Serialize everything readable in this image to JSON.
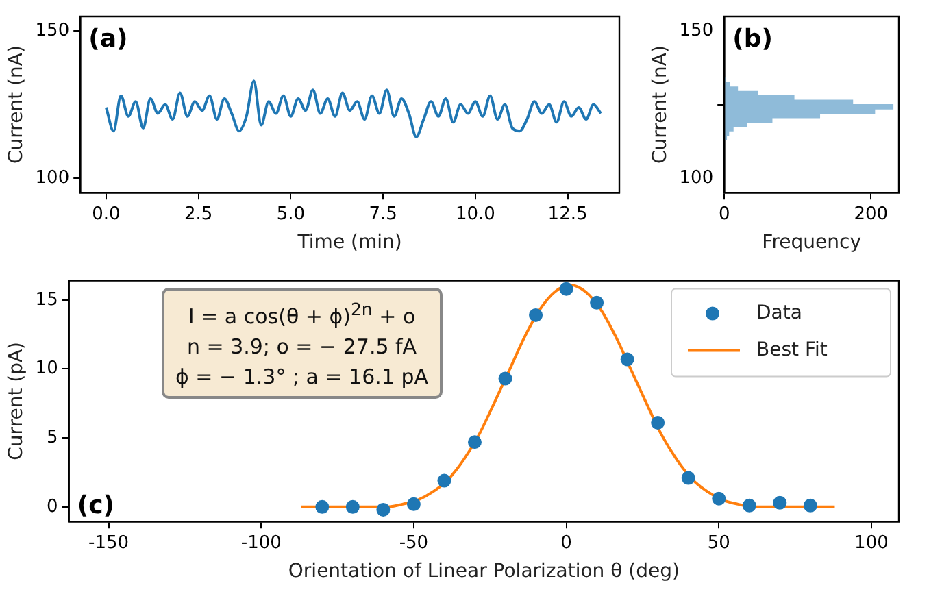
{
  "chart_data": [
    {
      "type": "line",
      "xlabel": "Time (min)",
      "ylabel": "Current (nA)",
      "annotations": [
        "(a)"
      ],
      "x": [
        0,
        0.2,
        0.4,
        0.6,
        0.8,
        1.0,
        1.2,
        1.4,
        1.6,
        1.8,
        2.0,
        2.2,
        2.4,
        2.6,
        2.8,
        3.0,
        3.2,
        3.4,
        3.6,
        3.8,
        4.0,
        4.2,
        4.4,
        4.6,
        4.8,
        5.0,
        5.2,
        5.4,
        5.6,
        5.8,
        6.0,
        6.2,
        6.4,
        6.6,
        6.8,
        7.0,
        7.2,
        7.4,
        7.6,
        7.8,
        8.0,
        8.2,
        8.4,
        8.6,
        8.8,
        9.0,
        9.2,
        9.4,
        9.6,
        9.8,
        10.0,
        10.2,
        10.4,
        10.6,
        10.8,
        11.0,
        11.2,
        11.4,
        11.6,
        11.8,
        12.0,
        12.2,
        12.4,
        12.6,
        12.8,
        13.0,
        13.2,
        13.4
      ],
      "series": [
        {
          "color": "#1f77b4",
          "values": [
            124,
            116,
            128,
            121,
            126,
            117,
            127,
            122,
            125,
            120,
            129,
            121,
            126,
            123,
            128,
            120,
            127,
            122,
            116,
            121,
            133,
            118,
            126,
            122,
            128,
            121,
            127,
            123,
            130,
            122,
            127,
            121,
            129,
            123,
            126,
            120,
            128,
            122,
            130,
            121,
            127,
            122,
            114,
            120,
            126,
            121,
            127,
            119,
            125,
            122,
            126,
            121,
            128,
            120,
            125,
            117,
            116,
            120,
            126,
            122,
            125,
            119,
            126,
            121,
            124,
            120,
            125,
            122
          ]
        }
      ],
      "marker": "none",
      "grid": false,
      "xlim": [
        -0.7,
        13.9
      ],
      "xticks": [
        {
          "value": 0,
          "label": "0.0"
        },
        2.5,
        {
          "value": 5,
          "label": "5.0"
        },
        7.5,
        {
          "value": 10,
          "label": "10.0"
        },
        12.5
      ],
      "ylim": [
        95,
        155
      ],
      "yticks": [
        100,
        150
      ]
    },
    {
      "type": "histogram",
      "orientation": "horizontal",
      "xlabel": "Frequency",
      "ylabel": "Current (nA)",
      "annotations": [
        "(b)"
      ],
      "bins": [
        113,
        114.5,
        116,
        117.5,
        119,
        120.5,
        122,
        123.5,
        125,
        126.5,
        128,
        129.5,
        131,
        132.5,
        134
      ],
      "values": [
        3,
        6,
        12,
        30,
        65,
        130,
        205,
        230,
        175,
        95,
        45,
        18,
        7,
        2
      ],
      "color": "#8fbbd9",
      "grid": false,
      "xlim": [
        0,
        238
      ],
      "xticks": [
        0,
        200
      ],
      "ylim": [
        95,
        155
      ],
      "yticks": [
        100,
        150
      ]
    },
    {
      "type": "scatter",
      "xlabel": "Orientation of Linear Polarization θ (deg)",
      "ylabel": "Current (pA)",
      "annotations": [
        "(c)",
        "I = a  cos(θ + ϕ)$^{2n}$ + o",
        "n = 3.9; o = − 27.5 fA",
        "ϕ = − 1.3° ; a = 16.1 pA"
      ],
      "legend": "top right",
      "grid": false,
      "series": [
        {
          "name": "Data",
          "type": "scatter",
          "marker": "circle",
          "color": "#1f77b4",
          "x": [
            -80,
            -70,
            -60,
            -50,
            -40,
            -30,
            -20,
            -10,
            0,
            10,
            20,
            30,
            40,
            50,
            60,
            70,
            80
          ],
          "values": [
            0,
            0,
            -0.2,
            0.2,
            1.9,
            4.7,
            9.3,
            13.9,
            15.8,
            14.8,
            10.7,
            6.1,
            2.1,
            0.6,
            0.1,
            0.3,
            0.1
          ]
        },
        {
          "name": "Best Fit",
          "type": "line",
          "marker": "none",
          "color": "#ff7f0e",
          "x": [
            -87,
            -63.7,
            -58.7,
            -53.7,
            -48.7,
            -43.7,
            -38.7,
            -33.7,
            -28.7,
            -23.7,
            -18.7,
            -13.7,
            -8.7,
            -3.7,
            1.3,
            6.3,
            11.3,
            16.3,
            21.3,
            26.3,
            31.3,
            36.3,
            41.3,
            46.3,
            51.3,
            56.3,
            61.3,
            66.3,
            88
          ],
          "values": [
            0,
            0,
            0,
            0.2,
            0.5,
            1.1,
            2.0,
            3.4,
            5.2,
            7.5,
            9.9,
            12.3,
            14.3,
            15.6,
            16.1,
            15.6,
            14.3,
            12.3,
            9.9,
            7.5,
            5.2,
            3.4,
            2.0,
            1.1,
            0.5,
            0.2,
            0,
            0,
            0
          ]
        }
      ],
      "xlim": [
        -163,
        109
      ],
      "xticks": [
        -150,
        -100,
        -50,
        0,
        50,
        100
      ],
      "ylim": [
        -1.06,
        16.4
      ],
      "yticks": [
        0,
        5,
        10,
        15
      ]
    }
  ]
}
